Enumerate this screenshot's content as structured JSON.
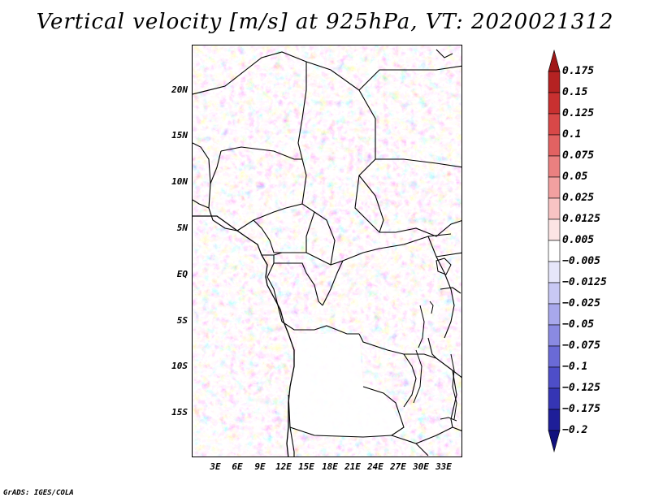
{
  "title": "Vertical velocity [m/s] at 925hPa, VT: 2020021312",
  "credit": "GrADS: IGES/COLA",
  "map": {
    "lat_labels": [
      {
        "text": "20N",
        "lat": 20
      },
      {
        "text": "15N",
        "lat": 15
      },
      {
        "text": "10N",
        "lat": 10
      },
      {
        "text": "5N",
        "lat": 5
      },
      {
        "text": "EQ",
        "lat": 0
      },
      {
        "text": "5S",
        "lat": -5
      },
      {
        "text": "10S",
        "lat": -10
      },
      {
        "text": "15S",
        "lat": -15
      }
    ],
    "lon_labels": [
      {
        "text": "3E",
        "lon": 3
      },
      {
        "text": "6E",
        "lon": 6
      },
      {
        "text": "9E",
        "lon": 9
      },
      {
        "text": "12E",
        "lon": 12
      },
      {
        "text": "15E",
        "lon": 15
      },
      {
        "text": "18E",
        "lon": 18
      },
      {
        "text": "21E",
        "lon": 21
      },
      {
        "text": "24E",
        "lon": 24
      },
      {
        "text": "27E",
        "lon": 27
      },
      {
        "text": "30E",
        "lon": 30
      },
      {
        "text": "33E",
        "lon": 33
      }
    ],
    "lon_range": [
      0.5,
      35
    ],
    "lat_range": [
      -19.5,
      24.5
    ]
  },
  "colorbar": {
    "levels": [
      "0.175",
      "0.15",
      "0.125",
      "0.1",
      "0.075",
      "0.05",
      "0.025",
      "0.0125",
      "0.005",
      "−0.005",
      "−0.0125",
      "−0.025",
      "−0.05",
      "−0.075",
      "−0.1",
      "−0.125",
      "−0.175",
      "−0.2"
    ],
    "colors": [
      "#a01818",
      "#b52222",
      "#c83030",
      "#d84848",
      "#e26262",
      "#ea8080",
      "#f2a0a0",
      "#f8c4c4",
      "#fce4e4",
      "#ffffff",
      "#e6e6fa",
      "#c8c8f4",
      "#a8a8ec",
      "#8a8ae2",
      "#6a6ad6",
      "#4e4ec8",
      "#3535b4",
      "#1e1e98",
      "#10107e"
    ]
  }
}
